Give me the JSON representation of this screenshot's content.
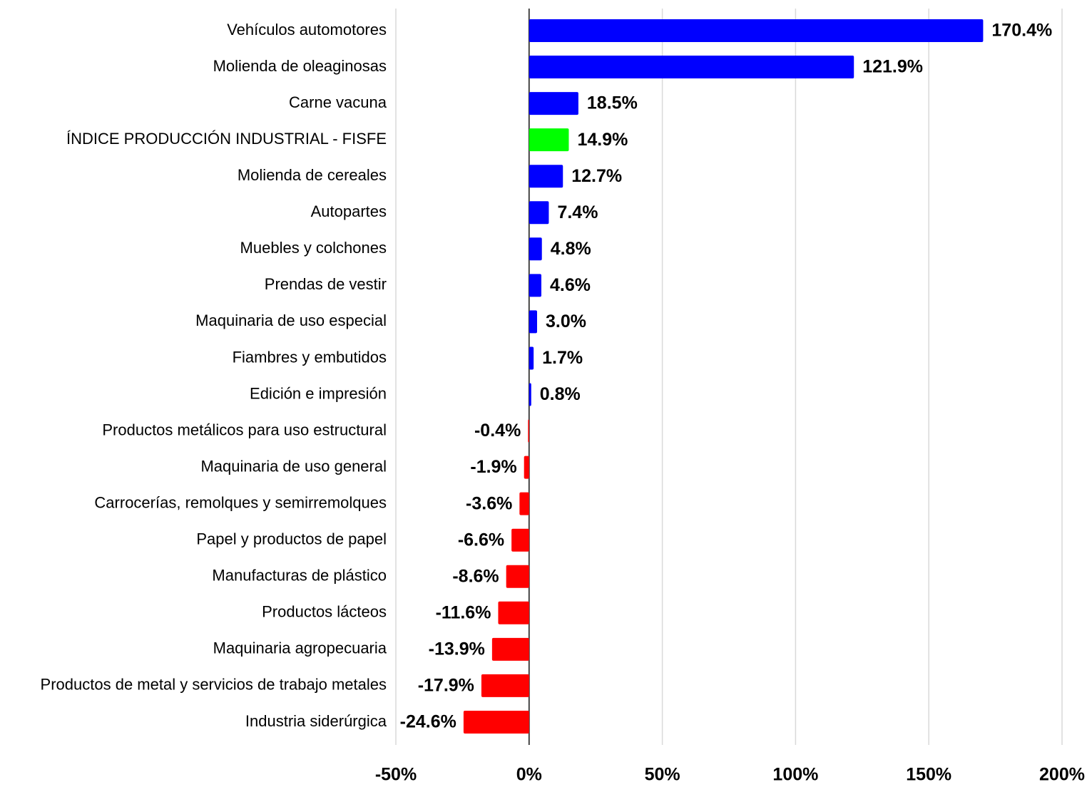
{
  "chart_data": {
    "type": "hbar",
    "categories": [
      "Vehículos automotores",
      "Molienda de oleaginosas",
      "Carne vacuna",
      "ÍNDICE PRODUCCIÓN INDUSTRIAL - FISFE",
      "Molienda de cereales",
      "Autopartes",
      "Muebles y colchones",
      "Prendas de vestir",
      "Maquinaria de uso especial",
      "Fiambres y embutidos",
      "Edición e impresión",
      "Productos metálicos para uso estructural",
      "Maquinaria de uso general",
      "Carrocerías, remolques y semirremolques",
      "Papel y productos de papel",
      "Manufacturas de plástico",
      "Productos lácteos",
      "Maquinaria agropecuaria",
      "Productos de metal y servicios de trabajo metales",
      "Industria siderúrgica"
    ],
    "values": [
      170.4,
      121.9,
      18.5,
      14.9,
      12.7,
      7.4,
      4.8,
      4.6,
      3.0,
      1.7,
      0.8,
      -0.4,
      -1.9,
      -3.6,
      -6.6,
      -8.6,
      -11.6,
      -13.9,
      -17.9,
      -24.6
    ],
    "value_labels": [
      "170.4%",
      "121.9%",
      "18.5%",
      "14.9%",
      "12.7%",
      "7.4%",
      "4.8%",
      "4.6%",
      "3.0%",
      "1.7%",
      "0.8%",
      "-0.4%",
      "-1.9%",
      "-3.6%",
      "-6.6%",
      "-8.6%",
      "-11.6%",
      "-13.9%",
      "-17.9%",
      "-24.6%"
    ],
    "colors": [
      "#0000ff",
      "#0000ff",
      "#0000ff",
      "#00ff00",
      "#0000ff",
      "#0000ff",
      "#0000ff",
      "#0000ff",
      "#0000ff",
      "#0000ff",
      "#0000ff",
      "#ff0000",
      "#ff0000",
      "#ff0000",
      "#ff0000",
      "#ff0000",
      "#ff0000",
      "#ff0000",
      "#ff0000",
      "#ff0000"
    ],
    "xlim": [
      -50,
      200
    ],
    "xticks": [
      {
        "value": -50,
        "label": "-50%"
      },
      {
        "value": 0,
        "label": "0%"
      },
      {
        "value": 50,
        "label": "50%"
      },
      {
        "value": 100,
        "label": "100%"
      },
      {
        "value": 150,
        "label": "150%"
      },
      {
        "value": 200,
        "label": "200%"
      }
    ],
    "grid": true
  }
}
